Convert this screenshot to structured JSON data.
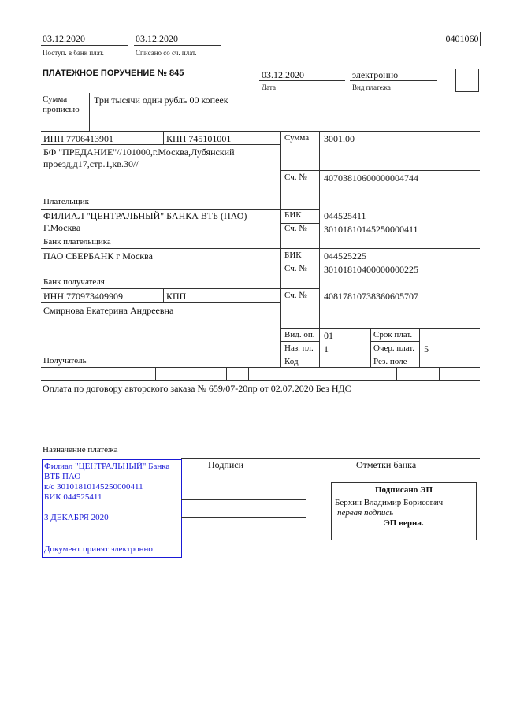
{
  "header": {
    "received_date": "03.12.2020",
    "received_label": "Поступ. в банк плат.",
    "debited_date": "03.12.2020",
    "debited_label": "Списано со сч. плат.",
    "form_code": "0401060",
    "title": "ПЛАТЕЖНОЕ ПОРУЧЕНИЕ № 845",
    "date": "03.12.2020",
    "date_label": "Дата",
    "payment_type": "электронно",
    "payment_type_label": "Вид платежа"
  },
  "amount_words": {
    "label_line1": "Сумма",
    "label_line2": "прописью",
    "value": "Три тысячи один рубль 00 копеек"
  },
  "payer": {
    "inn": "ИНН 7706413901",
    "kpp": "КПП 745101001",
    "name_line1": "БФ \"ПРЕДАНИЕ\"//101000,г.Москва,Лубянский",
    "name_line2": "проезд,д17,стр.1,кв.30//",
    "label": "Плательщик",
    "amount_label": "Сумма",
    "amount": "3001.00",
    "account_label": "Сч. №",
    "account": "40703810600000004744"
  },
  "payer_bank": {
    "name_line1": "ФИЛИАЛ \"ЦЕНТРАЛЬНЫЙ\" БАНКА ВТБ (ПАО)",
    "name_line2": "Г.Москва",
    "label": "Банк плательщика",
    "bik_label": "БИК",
    "bik": "044525411",
    "account_label": "Сч. №",
    "account": "30101810145250000411"
  },
  "payee_bank": {
    "name": "ПАО СБЕРБАНК г Москва",
    "label": "Банк получателя",
    "bik_label": "БИК",
    "bik": "044525225",
    "account_label": "Сч. №",
    "account": "30101810400000000225"
  },
  "payee": {
    "inn": "ИНН 770973409909",
    "kpp": "КПП",
    "name": "Смирнова Екатерина Андреевна",
    "label": "Получатель",
    "account_label": "Сч. №",
    "account": "40817810738360605707"
  },
  "codes": {
    "op_type_label": "Вид. оп.",
    "op_type": "01",
    "purpose_code_label": "Наз. пл.",
    "purpose_code": "1",
    "code_label": "Код",
    "due_label": "Срок плат.",
    "priority_label": "Очер. плат.",
    "priority": "5",
    "reserve_label": "Рез. поле"
  },
  "purpose": {
    "text": "Оплата по договору авторского заказа № 659/07-20пр от 02.07.2020 Без НДС",
    "label": "Назначение платежа"
  },
  "stamp": {
    "line1": "Филиал \"ЦЕНТРАЛЬНЫЙ\" Банка",
    "line2": "ВТБ ПАО",
    "line3": "к/с 30101810145250000411",
    "line4": "БИК 044525411",
    "date": "3 ДЕКАБРЯ 2020",
    "footer": "Документ принят электронно",
    "color": "#1a1ad6"
  },
  "signatures": {
    "label": "Подписи"
  },
  "bank_marks": {
    "label": "Отметки банка",
    "signed": "Подписано ЭП",
    "signer": "Берхин Владимир Борисович",
    "signer_role": "первая подпись",
    "verified": "ЭП верна."
  }
}
